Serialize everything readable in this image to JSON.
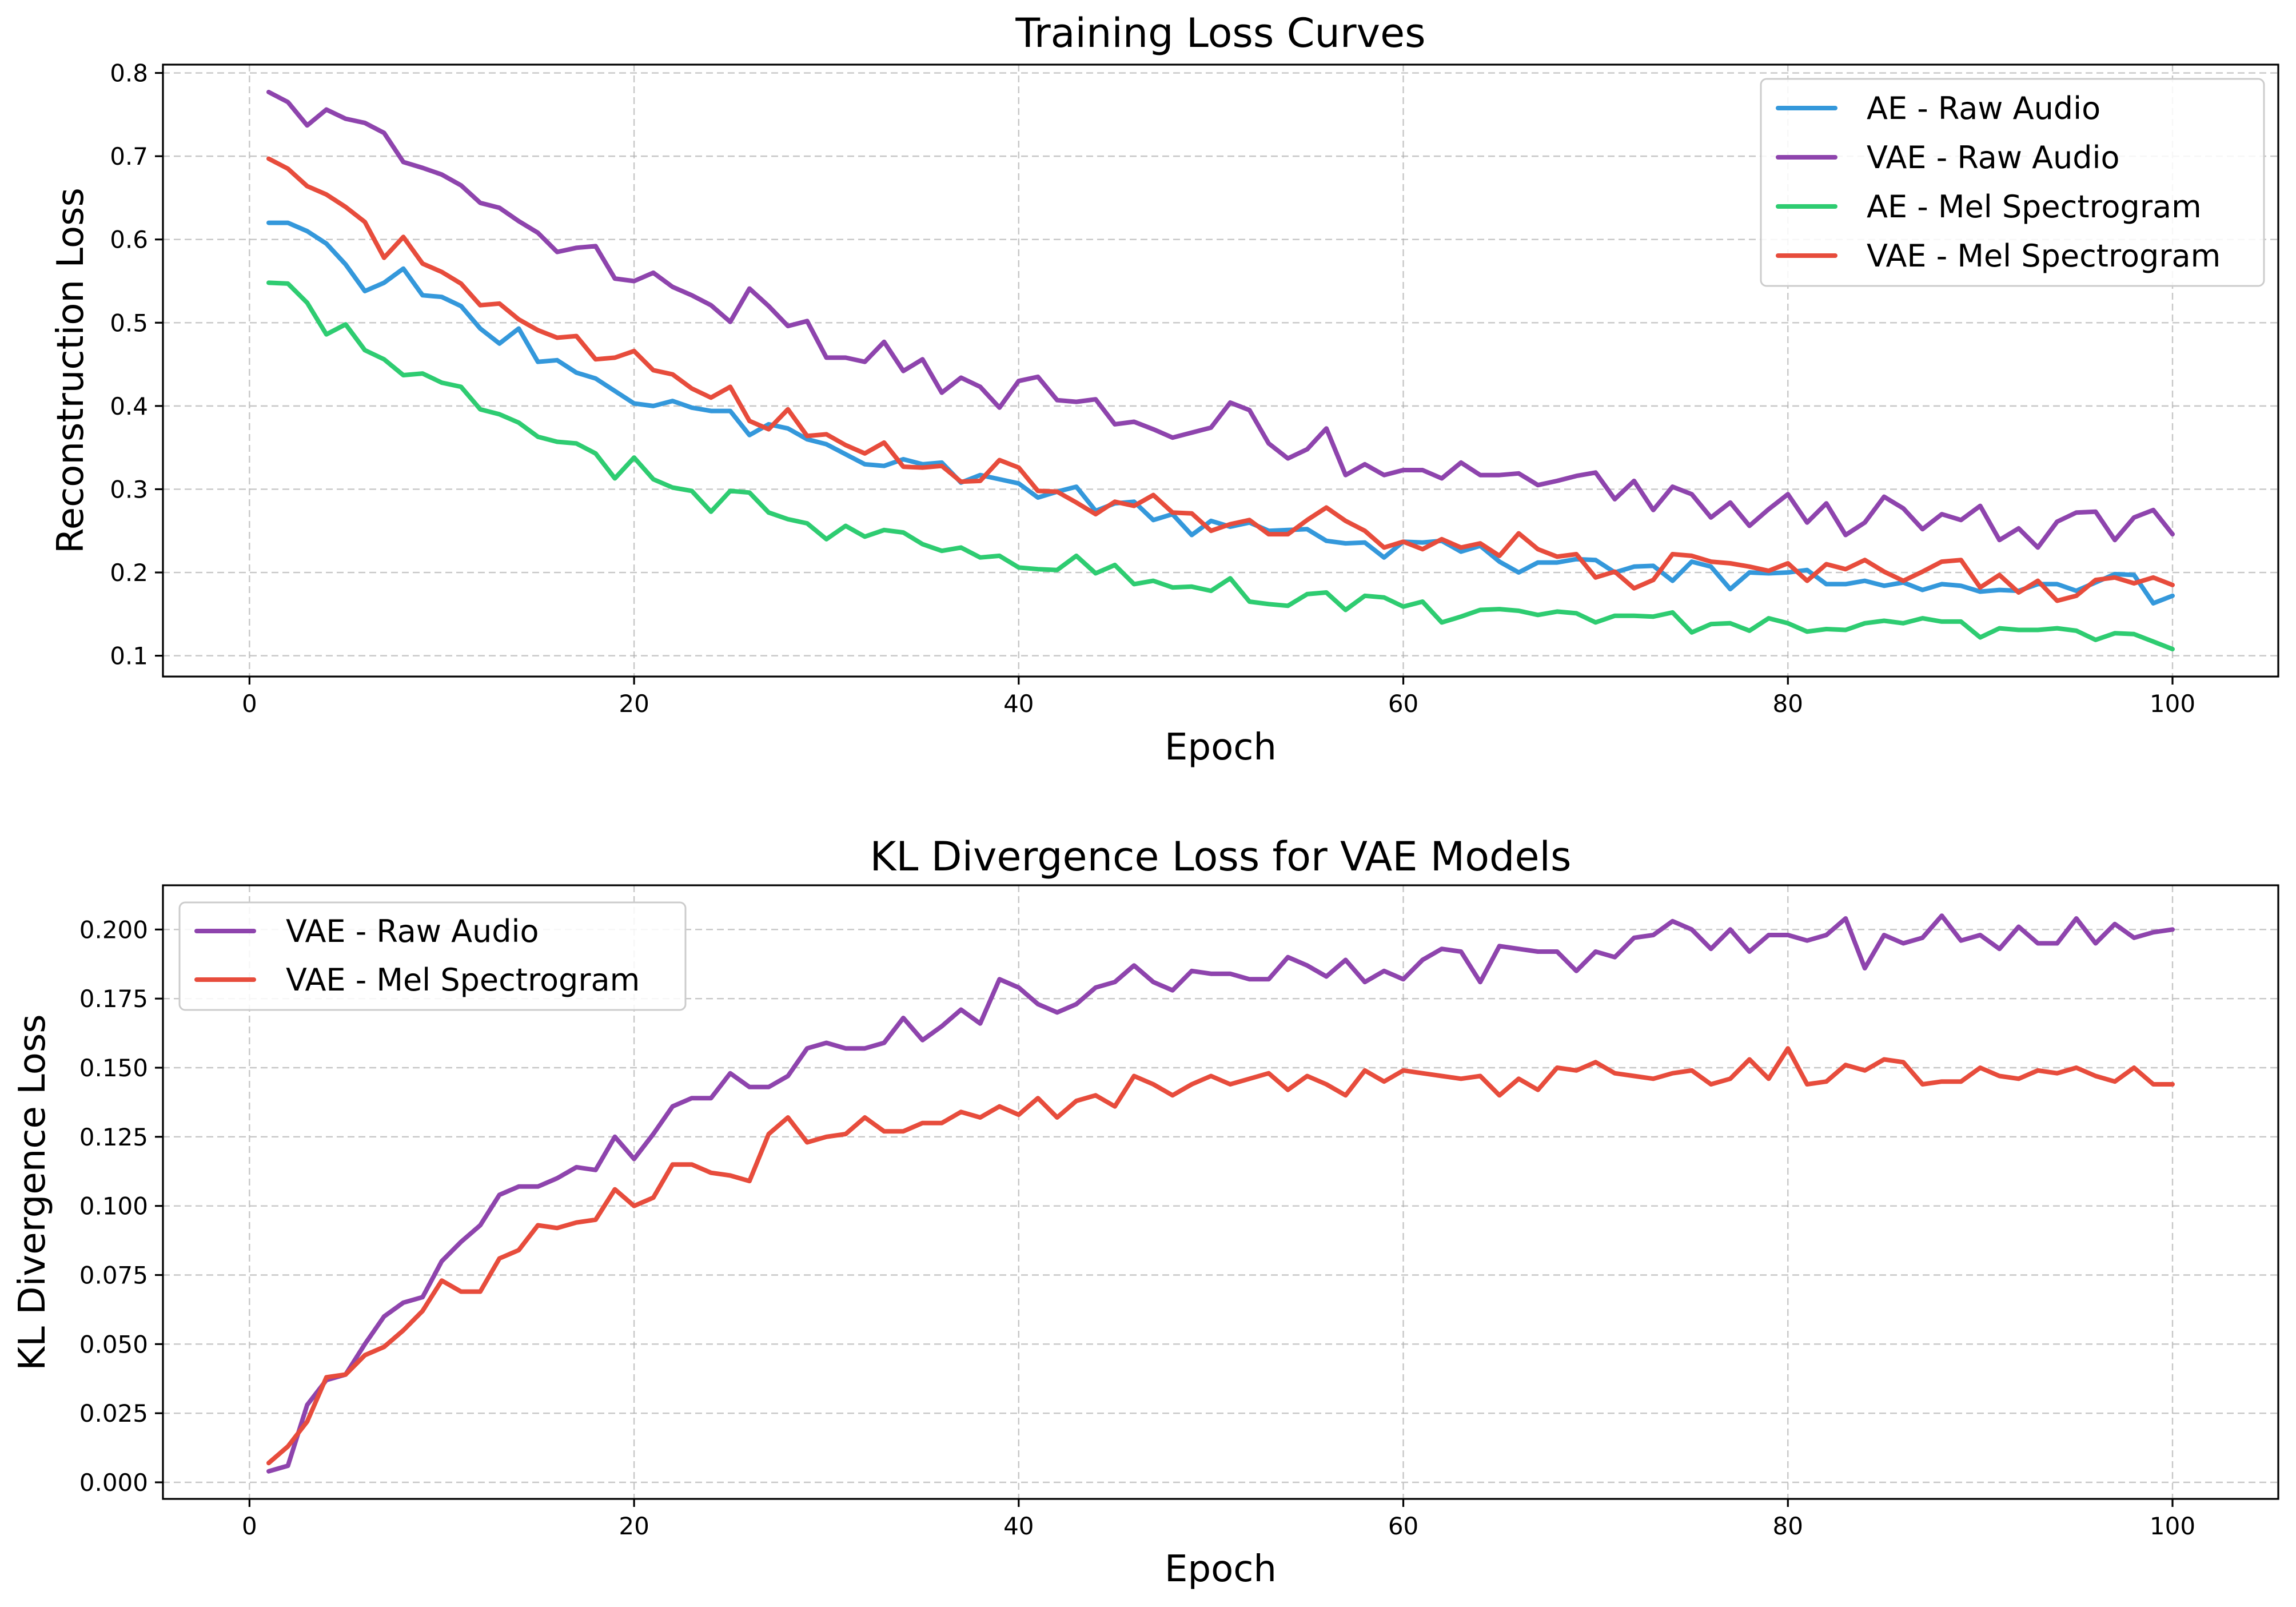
{
  "chart_data": [
    {
      "type": "line",
      "title": "Training Loss Curves",
      "xlabel": "Epoch",
      "ylabel": "Reconstruction Loss",
      "xlim": [
        -4.5,
        105.5
      ],
      "ylim": [
        0.075,
        0.81
      ],
      "xticks": [
        0,
        20,
        40,
        60,
        80,
        100
      ],
      "yticks": [
        0.1,
        0.2,
        0.3,
        0.4,
        0.5,
        0.6,
        0.7,
        0.8
      ],
      "grid": true,
      "legend": "top-right",
      "x_start": 1,
      "series": [
        {
          "name": "AE - Raw Audio",
          "color": "#3498db",
          "values": [
            0.62,
            0.62,
            0.61,
            0.595,
            0.57,
            0.538,
            0.548,
            0.565,
            0.533,
            0.531,
            0.52,
            0.493,
            0.475,
            0.493,
            0.453,
            0.455,
            0.44,
            0.433,
            0.418,
            0.403,
            0.4,
            0.406,
            0.398,
            0.394,
            0.394,
            0.365,
            0.378,
            0.373,
            0.36,
            0.354,
            0.342,
            0.33,
            0.328,
            0.336,
            0.33,
            0.332,
            0.308,
            0.317,
            0.312,
            0.307,
            0.29,
            0.297,
            0.303,
            0.274,
            0.283,
            0.285,
            0.263,
            0.27,
            0.245,
            0.262,
            0.255,
            0.26,
            0.25,
            0.251,
            0.252,
            0.238,
            0.235,
            0.236,
            0.218,
            0.237,
            0.236,
            0.238,
            0.225,
            0.232,
            0.213,
            0.2,
            0.212,
            0.212,
            0.216,
            0.215,
            0.2,
            0.207,
            0.208,
            0.19,
            0.213,
            0.207,
            0.18,
            0.2,
            0.199,
            0.2,
            0.203,
            0.186,
            0.186,
            0.19,
            0.184,
            0.188,
            0.179,
            0.186,
            0.184,
            0.177,
            0.179,
            0.178,
            0.186,
            0.186,
            0.178,
            0.188,
            0.198,
            0.197,
            0.163,
            0.172
          ]
        },
        {
          "name": "VAE - Raw Audio",
          "color": "#8e44ad",
          "values": [
            0.777,
            0.765,
            0.737,
            0.756,
            0.745,
            0.74,
            0.728,
            0.693,
            0.686,
            0.678,
            0.665,
            0.644,
            0.638,
            0.622,
            0.608,
            0.585,
            0.59,
            0.592,
            0.553,
            0.55,
            0.56,
            0.543,
            0.533,
            0.521,
            0.501,
            0.541,
            0.52,
            0.496,
            0.502,
            0.458,
            0.458,
            0.453,
            0.477,
            0.442,
            0.456,
            0.416,
            0.434,
            0.423,
            0.398,
            0.43,
            0.435,
            0.407,
            0.405,
            0.408,
            0.378,
            0.381,
            0.372,
            0.362,
            0.368,
            0.374,
            0.404,
            0.395,
            0.355,
            0.337,
            0.348,
            0.373,
            0.317,
            0.33,
            0.317,
            0.323,
            0.323,
            0.313,
            0.332,
            0.317,
            0.317,
            0.319,
            0.305,
            0.31,
            0.316,
            0.32,
            0.288,
            0.31,
            0.275,
            0.303,
            0.294,
            0.266,
            0.284,
            0.256,
            0.276,
            0.294,
            0.26,
            0.283,
            0.245,
            0.26,
            0.291,
            0.277,
            0.252,
            0.27,
            0.263,
            0.28,
            0.239,
            0.253,
            0.23,
            0.261,
            0.272,
            0.273,
            0.239,
            0.266,
            0.275,
            0.246
          ]
        },
        {
          "name": "AE - Mel Spectrogram",
          "color": "#2ecc71",
          "values": [
            0.548,
            0.547,
            0.524,
            0.486,
            0.498,
            0.467,
            0.456,
            0.437,
            0.439,
            0.428,
            0.423,
            0.396,
            0.39,
            0.38,
            0.363,
            0.357,
            0.355,
            0.343,
            0.313,
            0.338,
            0.312,
            0.302,
            0.298,
            0.273,
            0.298,
            0.296,
            0.272,
            0.264,
            0.259,
            0.24,
            0.256,
            0.243,
            0.251,
            0.248,
            0.234,
            0.226,
            0.23,
            0.218,
            0.22,
            0.206,
            0.204,
            0.203,
            0.22,
            0.199,
            0.209,
            0.186,
            0.19,
            0.182,
            0.183,
            0.178,
            0.193,
            0.165,
            0.162,
            0.16,
            0.174,
            0.176,
            0.155,
            0.172,
            0.17,
            0.159,
            0.165,
            0.14,
            0.147,
            0.155,
            0.156,
            0.154,
            0.149,
            0.153,
            0.151,
            0.14,
            0.148,
            0.148,
            0.147,
            0.152,
            0.128,
            0.138,
            0.139,
            0.13,
            0.145,
            0.139,
            0.129,
            0.132,
            0.131,
            0.139,
            0.142,
            0.139,
            0.145,
            0.141,
            0.141,
            0.122,
            0.133,
            0.131,
            0.131,
            0.133,
            0.13,
            0.119,
            0.127,
            0.126,
            0.117,
            0.108
          ]
        },
        {
          "name": "VAE - Mel Spectrogram",
          "color": "#e74c3c",
          "values": [
            0.697,
            0.685,
            0.664,
            0.654,
            0.639,
            0.621,
            0.578,
            0.603,
            0.571,
            0.561,
            0.547,
            0.521,
            0.523,
            0.504,
            0.491,
            0.482,
            0.484,
            0.456,
            0.458,
            0.466,
            0.443,
            0.438,
            0.421,
            0.41,
            0.423,
            0.382,
            0.372,
            0.396,
            0.364,
            0.366,
            0.353,
            0.343,
            0.356,
            0.327,
            0.326,
            0.328,
            0.309,
            0.31,
            0.335,
            0.326,
            0.298,
            0.297,
            0.284,
            0.27,
            0.285,
            0.28,
            0.293,
            0.272,
            0.271,
            0.25,
            0.258,
            0.263,
            0.246,
            0.246,
            0.263,
            0.278,
            0.262,
            0.25,
            0.23,
            0.237,
            0.228,
            0.24,
            0.23,
            0.235,
            0.22,
            0.247,
            0.228,
            0.219,
            0.222,
            0.194,
            0.201,
            0.181,
            0.191,
            0.222,
            0.22,
            0.213,
            0.211,
            0.207,
            0.202,
            0.211,
            0.19,
            0.21,
            0.204,
            0.215,
            0.201,
            0.19,
            0.201,
            0.213,
            0.215,
            0.182,
            0.197,
            0.176,
            0.19,
            0.166,
            0.172,
            0.191,
            0.194,
            0.187,
            0.194,
            0.185
          ]
        }
      ]
    },
    {
      "type": "line",
      "title": "KL Divergence Loss for VAE Models",
      "xlabel": "Epoch",
      "ylabel": "KL Divergence Loss",
      "xlim": [
        -4.5,
        105.5
      ],
      "ylim": [
        -0.006,
        0.216
      ],
      "xticks": [
        0,
        20,
        40,
        60,
        80,
        100
      ],
      "yticks": [
        0.0,
        0.025,
        0.05,
        0.075,
        0.1,
        0.125,
        0.15,
        0.175,
        0.2
      ],
      "ytick_labels": [
        "0.000",
        "0.025",
        "0.050",
        "0.075",
        "0.100",
        "0.125",
        "0.150",
        "0.175",
        "0.200"
      ],
      "grid": true,
      "legend": "top-left",
      "x_start": 1,
      "series": [
        {
          "name": "VAE - Raw Audio",
          "color": "#8e44ad",
          "values": [
            0.004,
            0.006,
            0.028,
            0.037,
            0.039,
            0.05,
            0.06,
            0.065,
            0.067,
            0.08,
            0.087,
            0.093,
            0.104,
            0.107,
            0.107,
            0.11,
            0.114,
            0.113,
            0.125,
            0.117,
            0.126,
            0.136,
            0.139,
            0.139,
            0.148,
            0.143,
            0.143,
            0.147,
            0.157,
            0.159,
            0.157,
            0.157,
            0.159,
            0.168,
            0.16,
            0.165,
            0.171,
            0.166,
            0.182,
            0.179,
            0.173,
            0.17,
            0.173,
            0.179,
            0.181,
            0.187,
            0.181,
            0.178,
            0.185,
            0.184,
            0.184,
            0.182,
            0.182,
            0.19,
            0.187,
            0.183,
            0.189,
            0.181,
            0.185,
            0.182,
            0.189,
            0.193,
            0.192,
            0.181,
            0.194,
            0.193,
            0.192,
            0.192,
            0.185,
            0.192,
            0.19,
            0.197,
            0.198,
            0.203,
            0.2,
            0.193,
            0.2,
            0.192,
            0.198,
            0.198,
            0.196,
            0.198,
            0.204,
            0.186,
            0.198,
            0.195,
            0.197,
            0.205,
            0.196,
            0.198,
            0.193,
            0.201,
            0.195,
            0.195,
            0.204,
            0.195,
            0.202,
            0.197,
            0.199,
            0.2
          ]
        },
        {
          "name": "VAE - Mel Spectrogram",
          "color": "#e74c3c",
          "values": [
            0.007,
            0.013,
            0.022,
            0.038,
            0.039,
            0.046,
            0.049,
            0.055,
            0.062,
            0.073,
            0.069,
            0.069,
            0.081,
            0.084,
            0.093,
            0.092,
            0.094,
            0.095,
            0.106,
            0.1,
            0.103,
            0.115,
            0.115,
            0.112,
            0.111,
            0.109,
            0.126,
            0.132,
            0.123,
            0.125,
            0.126,
            0.132,
            0.127,
            0.127,
            0.13,
            0.13,
            0.134,
            0.132,
            0.136,
            0.133,
            0.139,
            0.132,
            0.138,
            0.14,
            0.136,
            0.147,
            0.144,
            0.14,
            0.144,
            0.147,
            0.144,
            0.146,
            0.148,
            0.142,
            0.147,
            0.144,
            0.14,
            0.149,
            0.145,
            0.149,
            0.148,
            0.147,
            0.146,
            0.147,
            0.14,
            0.146,
            0.142,
            0.15,
            0.149,
            0.152,
            0.148,
            0.147,
            0.146,
            0.148,
            0.149,
            0.144,
            0.146,
            0.153,
            0.146,
            0.157,
            0.144,
            0.145,
            0.151,
            0.149,
            0.153,
            0.152,
            0.144,
            0.145,
            0.145,
            0.15,
            0.147,
            0.146,
            0.149,
            0.148,
            0.15,
            0.147,
            0.145,
            0.15,
            0.144,
            0.144
          ]
        }
      ]
    }
  ]
}
